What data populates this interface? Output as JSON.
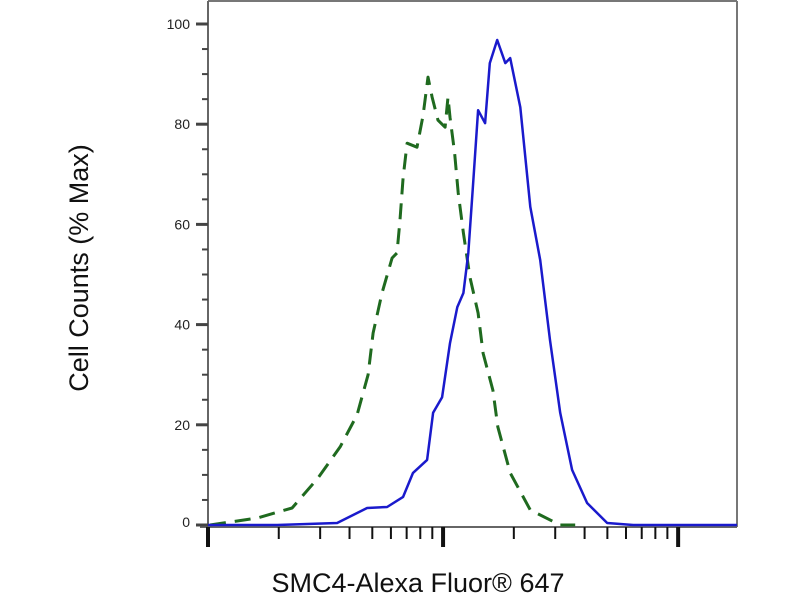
{
  "chart_data": {
    "type": "line",
    "title": "",
    "xlabel": "SMC4-Alexa Fluor® 647",
    "ylabel": "Cell Counts (% Max)",
    "xscale": "log",
    "xlim": [
      1,
      178
    ],
    "ylim": [
      0,
      100
    ],
    "x_major_ticks": [
      1,
      10,
      100
    ],
    "x_tick_labels_shown": false,
    "y_ticks": [
      0,
      20,
      40,
      60,
      80,
      100
    ],
    "y_tick_labels": [
      "0",
      "20",
      "40",
      "60",
      "80",
      "100"
    ],
    "y_minor_step": 5,
    "grid": false,
    "legend": "none",
    "series": [
      {
        "style": "dashed",
        "color": "#1f6a1f",
        "x": [
          1.02,
          1.62,
          2.28,
          2.94,
          3.65,
          4.31,
          4.8,
          5.04,
          5.5,
          6.07,
          6.37,
          6.56,
          6.76,
          7.03,
          7.75,
          8.22,
          8.63,
          8.98,
          9.52,
          10.2,
          10.5,
          10.7,
          11.2,
          11.6,
          12.2,
          13.0,
          14.1,
          14.8,
          16.3,
          17.1,
          19.3,
          23.5,
          31.5,
          36.5
        ],
        "y": [
          0,
          1.4,
          3.4,
          9.4,
          15.6,
          22.0,
          30.0,
          38.3,
          46.3,
          53.3,
          54.3,
          60.9,
          69.3,
          76.2,
          75.4,
          81.8,
          89.4,
          85.4,
          80.8,
          79.4,
          85.4,
          81.4,
          74.3,
          66.3,
          58.3,
          49.5,
          42.3,
          34.3,
          26.9,
          19.6,
          10.4,
          3.0,
          0,
          0
        ]
      },
      {
        "style": "solid",
        "color": "#1a1acc",
        "x": [
          1,
          1.97,
          3.54,
          4.75,
          5.78,
          6.76,
          7.45,
          8.55,
          9.07,
          9.91,
          10.7,
          11.5,
          12.2,
          12.8,
          13.4,
          14.1,
          15.1,
          15.8,
          17.0,
          18.4,
          19.3,
          21.3,
          23.5,
          25.9,
          28.5,
          31.5,
          35.4,
          41.0,
          49.9,
          64.4,
          178
        ],
        "y": [
          0,
          0,
          0.4,
          3.4,
          3.6,
          5.6,
          10.4,
          13.0,
          22.4,
          25.5,
          36.3,
          43.5,
          46.3,
          54.3,
          67.5,
          82.8,
          80.2,
          92.2,
          96.8,
          92.2,
          93.2,
          83.4,
          63.5,
          52.9,
          36.9,
          22.4,
          11.0,
          4.4,
          0.4,
          0,
          0
        ]
      }
    ]
  }
}
